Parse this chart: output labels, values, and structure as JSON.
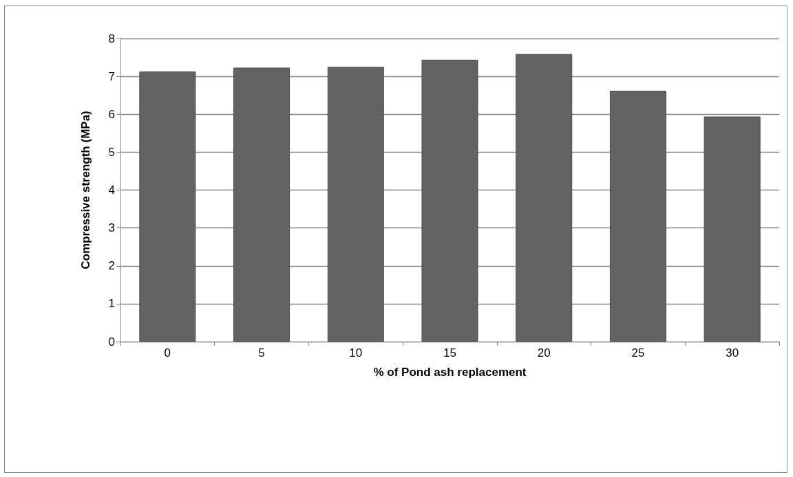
{
  "chart_data": {
    "type": "bar",
    "xlabel": "% of Pond ash replacement",
    "ylabel": "Compressive strength (MPa)",
    "categories": [
      "0",
      "5",
      "10",
      "15",
      "20",
      "25",
      "30"
    ],
    "values": [
      7.13,
      7.23,
      7.25,
      7.44,
      7.59,
      6.62,
      5.94
    ],
    "color": "#636363",
    "ylim": [
      0,
      8
    ],
    "yticks": [
      0,
      1,
      2,
      3,
      4,
      5,
      6,
      7,
      8
    ],
    "grid": "y"
  }
}
